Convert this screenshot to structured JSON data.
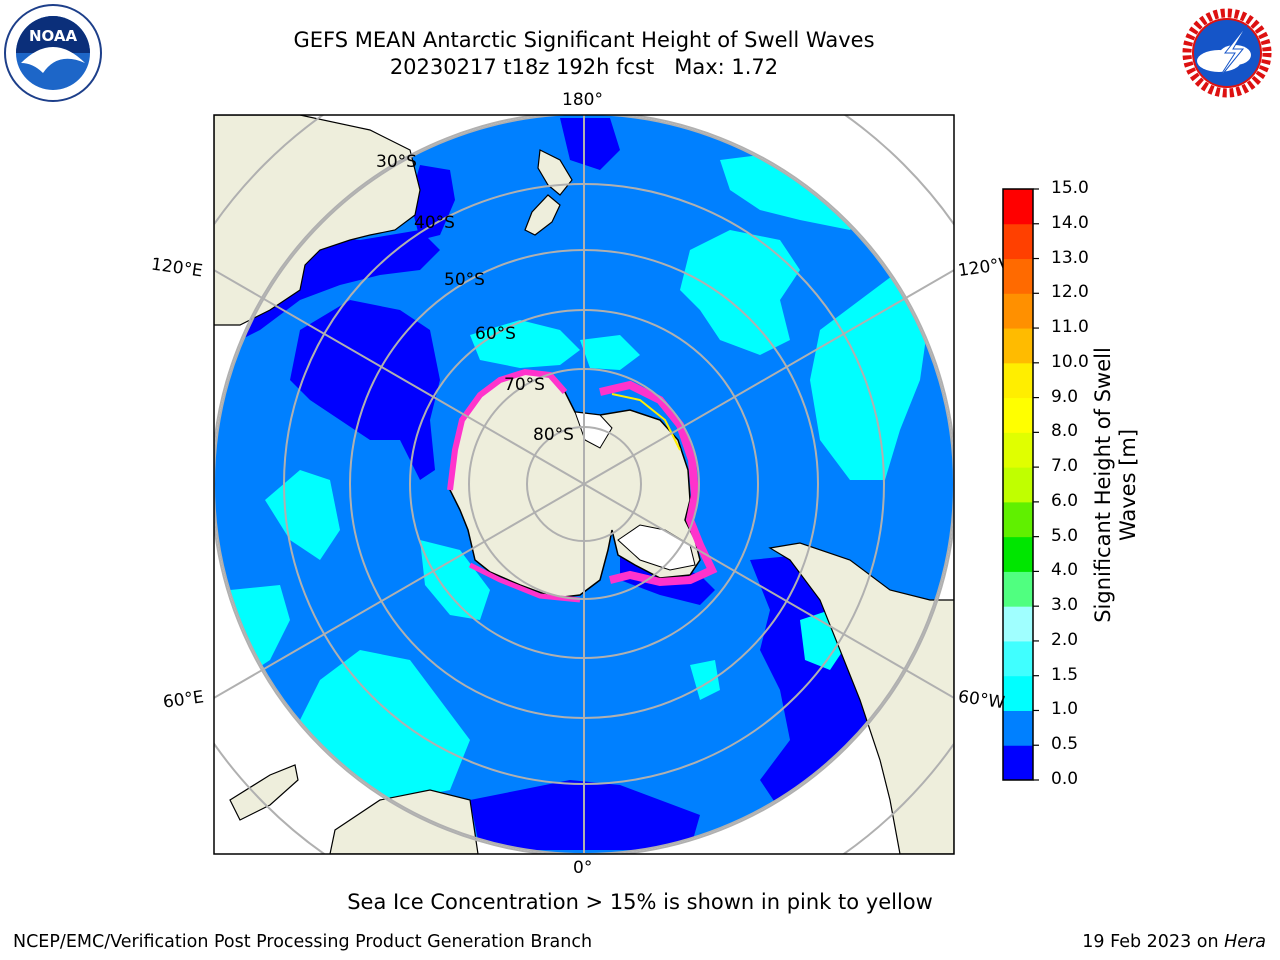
{
  "title": {
    "line1": "GEFS MEAN Antarctic Significant Height of Swell Waves",
    "line2": "20230217 t18z 192h fcst   Max: 1.72"
  },
  "logos": {
    "left": {
      "name": "noaa-logo",
      "text": "NOAA"
    },
    "right": {
      "name": "national-weather-service-logo",
      "text": "NATIONAL WEATHER SERVICE"
    }
  },
  "map": {
    "projection": "south-polar-stereographic",
    "longitude_labels": {
      "top": "180°",
      "bottom": "0°",
      "upper_left": "120°E",
      "upper_right": "120°W",
      "lower_left": "60°E",
      "lower_right": "60°W"
    },
    "latitude_labels": [
      "30°S",
      "40°S",
      "50°S",
      "60°S",
      "70°S",
      "80°S"
    ],
    "colors": {
      "land": "#eeeedc",
      "ocean_background": "#ffffff",
      "gridline": "#b0b0b0"
    }
  },
  "colorbar": {
    "label_line1": "Significant Height of Swell",
    "label_line2": "Waves [m]",
    "units": "m",
    "ticks": [
      "0.0",
      "0.5",
      "1.0",
      "1.5",
      "2.0",
      "3.0",
      "4.0",
      "5.0",
      "6.0",
      "7.0",
      "8.0",
      "9.0",
      "10.0",
      "11.0",
      "12.0",
      "13.0",
      "14.0",
      "15.0"
    ],
    "bins": [
      {
        "from": 0.0,
        "to": 0.5,
        "color": "#0000ff"
      },
      {
        "from": 0.5,
        "to": 1.0,
        "color": "#0080ff"
      },
      {
        "from": 1.0,
        "to": 1.5,
        "color": "#00ffff"
      },
      {
        "from": 1.5,
        "to": 2.0,
        "color": "#40ffff"
      },
      {
        "from": 2.0,
        "to": 3.0,
        "color": "#a0ffff"
      },
      {
        "from": 3.0,
        "to": 4.0,
        "color": "#50ff80"
      },
      {
        "from": 4.0,
        "to": 5.0,
        "color": "#00e600"
      },
      {
        "from": 5.0,
        "to": 6.0,
        "color": "#60f000"
      },
      {
        "from": 6.0,
        "to": 7.0,
        "color": "#c0ff00"
      },
      {
        "from": 7.0,
        "to": 8.0,
        "color": "#e0ff00"
      },
      {
        "from": 8.0,
        "to": 9.0,
        "color": "#ffff00"
      },
      {
        "from": 9.0,
        "to": 10.0,
        "color": "#ffee00"
      },
      {
        "from": 10.0,
        "to": 11.0,
        "color": "#ffbb00"
      },
      {
        "from": 11.0,
        "to": 12.0,
        "color": "#ff9000"
      },
      {
        "from": 12.0,
        "to": 13.0,
        "color": "#ff6a00"
      },
      {
        "from": 13.0,
        "to": 14.0,
        "color": "#ff4000"
      },
      {
        "from": 14.0,
        "to": 15.0,
        "color": "#ff0000"
      }
    ]
  },
  "sea_ice_note": "Sea Ice Concentration > 15% is shown in pink to yellow",
  "sea_ice_colors": [
    "#ff00ff",
    "#ff66cc",
    "#ffffff",
    "#ffee00"
  ],
  "footer": {
    "left": "NCEP/EMC/Verification Post Processing Product Generation Branch",
    "date": "19 Feb 2023 on ",
    "host": "Hera"
  }
}
